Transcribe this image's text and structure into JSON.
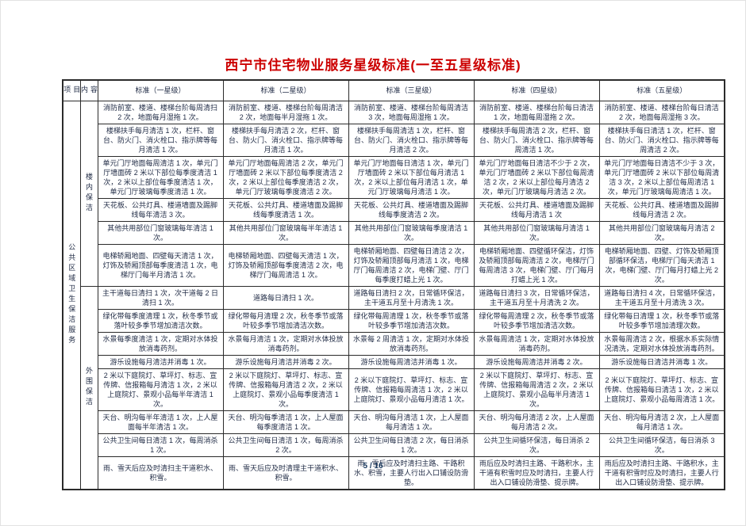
{
  "page": {
    "title": "西宁市住宅物业服务星级标准(一至五星级标准)",
    "page_number": "5 / 16"
  },
  "colors": {
    "title-red": "#cc0000",
    "text-navy": "#1f2a44",
    "footer-blue": "#17375d"
  },
  "table": {
    "headers": {
      "project": "项目",
      "content": "内容",
      "stars": [
        "标准（一星级）",
        "标准（二星级）",
        "标准（三星级）",
        "标准（四星级）",
        "标准（五星级）"
      ]
    },
    "project_label": "公共区域卫生保洁服务",
    "sections": [
      {
        "label": "楼内保洁",
        "rows": [
          {
            "cells": [
              "消防前室、楼道、楼梯台阶每周清扫 2 次，地面每月湿拖 1 次。",
              "消防前室、楼道、楼梯台阶每周清洁 2 次，地面每半月湿拖 1 次。",
              "消防前室、楼道、楼梯台阶每周清洁 3 次，地面每周湿拖 1 次。",
              "消防前室、楼道、楼梯台阶每日清洁 1 次，地面每周湿拖 2 次。",
              "消防前室、楼道、楼梯台阶每日清洁 2 次，地面每周湿拖 3 次。"
            ]
          },
          {
            "cells": [
              "楼梯扶手每月清洁 1 次，栏杆、窗台、防火门、消火栓口、指示牌等每月清洁 1 次。",
              "楼梯扶手每月清洁 2 次，栏杆、窗台、防火门、消火栓口、指示牌等每月清洁 1 次。",
              "楼梯扶手每周清洁 1 次，栏杆、窗台、防火门、消火栓口、指示牌等每月清洁 2 次。",
              "楼梯扶手每周清洁 2 次，栏杆、窗台、防火门、消火栓口、指示牌等每周清洁 1 次。",
              "楼梯扶手每日清洁 1 次，栏杆、窗台、防火门、消火栓口、指示牌等每周清洁 2 次。"
            ]
          },
          {
            "cells": [
              "单元门厅地面每周清洁 1 次，单元门厅墙面砖 2 米以下部位每季度清洁 1 次，2 米以上部位每季度清洁 1 次，单元门厅玻璃每季度清洁 1 次。",
              "单元门厅地面每周清洁 2 次，单元门厅墙面砖 2 米以下部位每季度清洁 2 次，2 米以上部位每季度清洁 2 次，单元门厅玻璃每季度清洁 2 次。",
              "单元门厅地面每日清洁 1 次，单元门厅墙面砖 2 米以下部位每月清洁 1 次，2 米以上部位每月清洁 1 次，单元门厅玻璃每月清洁 1 次。",
              "单元门厅地面每日清洁不少于 2 次，单元门厅墙面砖 2 米以下部位每周清洁 2 次，2 米以上部位每月清洁 2 次，单元门厅玻璃每月清洁 2 次。",
              "单元门厅地面每日清洁不少于 3 次，单元门厅墙面砖 2 米以下部位每周清洁 3 次，2 米以上部位每周清洁 1 次，单元门厅玻璃每周清洁 1 次。"
            ]
          },
          {
            "cells": [
              "天花板、公共灯具、楼道墙面及踢脚线每年清洁 3 次。",
              "天花板、公共灯具、楼道墙面及踢脚线每季度清洁 1 次。",
              "天花板、公共灯具、楼道墙面及踢脚线每季度清洁 2 次。",
              "天花板、公共灯具、楼道墙面及踢脚线每月清洁 1 次",
              "天花板、公共灯具、楼道墙面及踢脚线每月清洁 2 次。"
            ]
          },
          {
            "cells": [
              "其他共用部位门窗玻璃每年清洁 1 次。",
              "其他共用部位门窗玻璃每半年清洁 1 次。",
              "其他共用部位门窗玻璃每季度清洁 1 次。",
              "其他共用部位门窗玻璃每月清洁 1 次。",
              "其他共用部位门窗玻璃每月清洁 2 次。"
            ]
          },
          {
            "cells": [
              "电梯轿厢地面、四壁每天清洁 1 次，灯饰及轿厢顶部每季度清洁 1 次，电梯厅门每半月清洁 1 次。",
              "电梯轿厢地面、四壁每天清洁 1 次，灯饰及轿厢顶部每季度清洁 2 次，电梯厅门每周清洁 1 次。",
              "电梯轿厢地面、四壁每日清洁 2 次，灯饰及轿厢顶部每月清洁 1 次，电梯厅门每周清洁 2 次，电梯门壁、厅门每季度打蜡上光 1 次。",
              "电梯轿厢地面、四壁循环保洁，灯饰及轿厢顶部每周清洁 2 次，电梯厅门每周清洁 3 次，电梯门壁、厅门每月打蜡上光 1 次。",
              "电梯轿厢地面、四壁、灯饰及轿厢顶部循环保洁，电梯厅门每天清洁 1 次，电梯门壁、厅门每月打蜡上光 2 次。"
            ]
          }
        ]
      },
      {
        "label": "外围保洁",
        "rows": [
          {
            "cells": [
              "主干道每日清扫 1 次，次干道每 2 日清扫 1 次。",
              "道路每日清扫 1 次。",
              "道路每日清扫 2 次，日常循环保洁，主干道五月至十月清洗 1 次。",
              "道路每日清扫 3 次，日常循环保洁，主干道五月至十月清洗 2 次。",
              "道路每日清扫 4 次，日常循环保洁，主干道五月至十月清洗 3 次。"
            ]
          },
          {
            "cells": [
              "绿化带每季度清理 1 次，秋冬季节或落叶较多季节增加清洁次数。",
              "绿化带每月清理 2 次，秋冬季节或落叶较多季节增加清洁次数。",
              "绿化带每周清理 1 次，秋冬季节或落叶较多季节增加清洁次数。",
              "绿化带每周清理 2 次，秋冬季节或落叶较多季节增加清洁次数。",
              "绿化带每日清理 1 次，秋冬季节或落叶较多季节增加清理次数。"
            ]
          },
          {
            "cells": [
              "水景每季度清洁 1 次，定期对水体投放消毒药剂。",
              "水景每月清洁 1 次，定期对水体投放消毒药剂。",
              "水景每 2 周清洁 1 次，定期对水体投放消毒药剂。",
              "水景每周清洁 1 次，定期对水体投放消毒药剂。",
              "水景每周清洁 2 次，根据水系实际情况清洗，定期对水体投放消毒药剂。"
            ]
          },
          {
            "cells": [
              "游乐设施每月清洁并消毒 1 次。",
              "游乐设施每月清洁并消毒 2 次。",
              "游乐设施每周清洁并消毒 1 次。",
              "游乐设施每周清洁并消毒 2 次。",
              "游乐设施每日清洁并消毒 1 次。"
            ]
          },
          {
            "cells": [
              "2 米以下庭院灯、草坪灯、标志、宣传牌、信报箱每月清洁 1 次，2 米以上庭院灯、景观小品每半年清洁 1 次。",
              "2 米以下庭院灯、草坪灯、标志、宣传牌、信报箱每月清洁 2 次，2 米以上庭院灯、景观小品每季度清洁 1 次。",
              "2 米以下庭院灯、草坪灯、标志、宣传牌、信报箱每周清洁 1 次，2 米以上庭院灯、景观小品每月清洁 1 次。",
              "2 米以下庭院灯、草坪灯、标志、宣传牌、信报箱每周清洁 2 次，2 米以上庭院灯、景观小品每半月清洁 1 次。",
              "2 米以下庭院灯、草坪灯、标志、宣传牌、信报箱每日清洁 1 次，2 米以上庭院灯、景观小品每周清洁 1 次。"
            ]
          },
          {
            "cells": [
              "天台、明沟每半年清洁 1 次，上人屋面每半年清洁 1 次。",
              "天台、明沟每季清洁 1 次，上人屋面每季度清洁 1 次。",
              "天台、明沟每月清洁 1 次，上人屋面每月清洁 1 次。",
              "天台、明沟每月清洁 2 次，上人屋面每月清洁 2 次。",
              "天台、明沟每月清洁 2 次，上人屋面每月清洁 1 次。"
            ]
          },
          {
            "cells": [
              "公共卫生间每日清洁 1 次，每周消杀 1 次。",
              "公共卫生间每日清洁 1 次，每周消杀 2 次。",
              "公共卫生间每日清洁 2 次，每日消杀 1 次。",
              "公共卫生间循环保洁，每日消杀 2 次。",
              "公共卫生间循环保洁，每日消杀 3 次。"
            ]
          },
          {
            "cells": [
              "雨、雪天后应及时清扫主干道积水、积雪。",
              "雨、雪天后应及时清理主干道积水、积雪。",
              "雨、雪后应及时清扫主路、干路积水、积雪，主要人行出入口铺设防滑垫。",
              "雨后应及时清扫主路、干路积水，主干道有积雪时应及时清扫，主要人行出入口铺设防滑垫、提示牌。",
              "雨后应及时清扫主路、干路积水，主干道有积雪时应及时清扫，主要人行出入口铺设防滑垫、提示牌。"
            ]
          }
        ]
      }
    ]
  }
}
